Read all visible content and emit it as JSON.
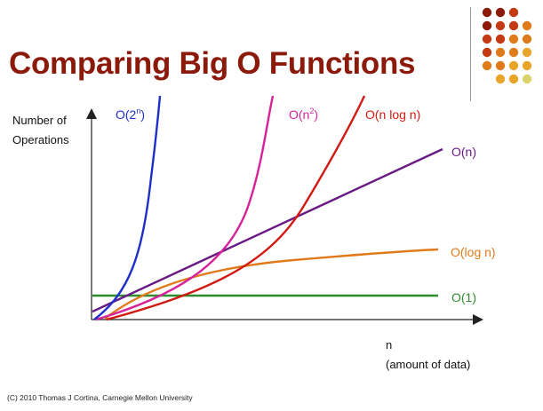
{
  "slide": {
    "title": "Comparing Big O Functions",
    "footer": "(C) 2010 Thomas J Cortina, Carnegie Mellon University"
  },
  "decor": {
    "dot_colors": [
      "#8b1a0b",
      "#c43a12",
      "#e07b1b",
      "#e8a52a",
      "#d9d36a"
    ],
    "rule_color": "#9a9a9a"
  },
  "axes": {
    "y_label_line1": "Number of",
    "y_label_line2": "Operations",
    "x_label_line1": "n",
    "x_label_line2": "(amount of data)"
  },
  "curves": [
    {
      "name": "O(2^n)",
      "base": "O(2",
      "sup": "n",
      "tail": ")",
      "color": "#1f2fc9"
    },
    {
      "name": "O(n^2)",
      "base": "O(n",
      "sup": "2",
      "tail": ")",
      "color": "#d6239a"
    },
    {
      "name": "O(n log n)",
      "base": "O(n log n)",
      "sup": "",
      "tail": "",
      "color": "#d11a12"
    },
    {
      "name": "O(n)",
      "base": "O(n)",
      "sup": "",
      "tail": "",
      "color": "#6a1a84"
    },
    {
      "name": "O(log n)",
      "base": "O(log n)",
      "sup": "",
      "tail": "",
      "color": "#e07a1b"
    },
    {
      "name": "O(1)",
      "base": "O(1)",
      "sup": "",
      "tail": "",
      "color": "#2e8b2e"
    }
  ]
}
